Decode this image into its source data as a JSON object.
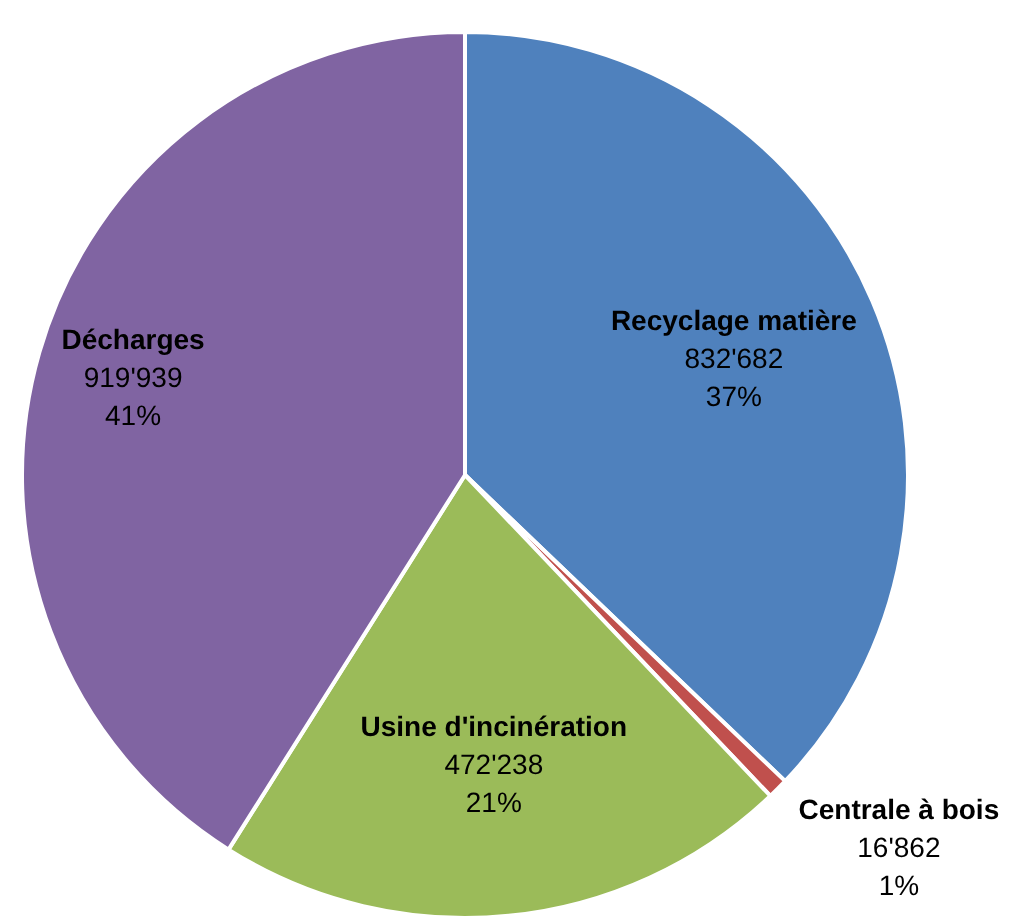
{
  "chart_data": {
    "type": "pie",
    "categories": [
      "Recyclage matière",
      "Centrale à bois",
      "Usine d'incinération",
      "Décharges"
    ],
    "values": [
      832682,
      16862,
      472238,
      919939
    ],
    "colors": [
      "#4f81bd",
      "#c0504d",
      "#9bbb59",
      "#8064a2"
    ],
    "value_labels": [
      "832'682\n37%",
      "16'862\n1%",
      "472'238\n21%",
      "919'939\n41%"
    ],
    "legend": false
  }
}
